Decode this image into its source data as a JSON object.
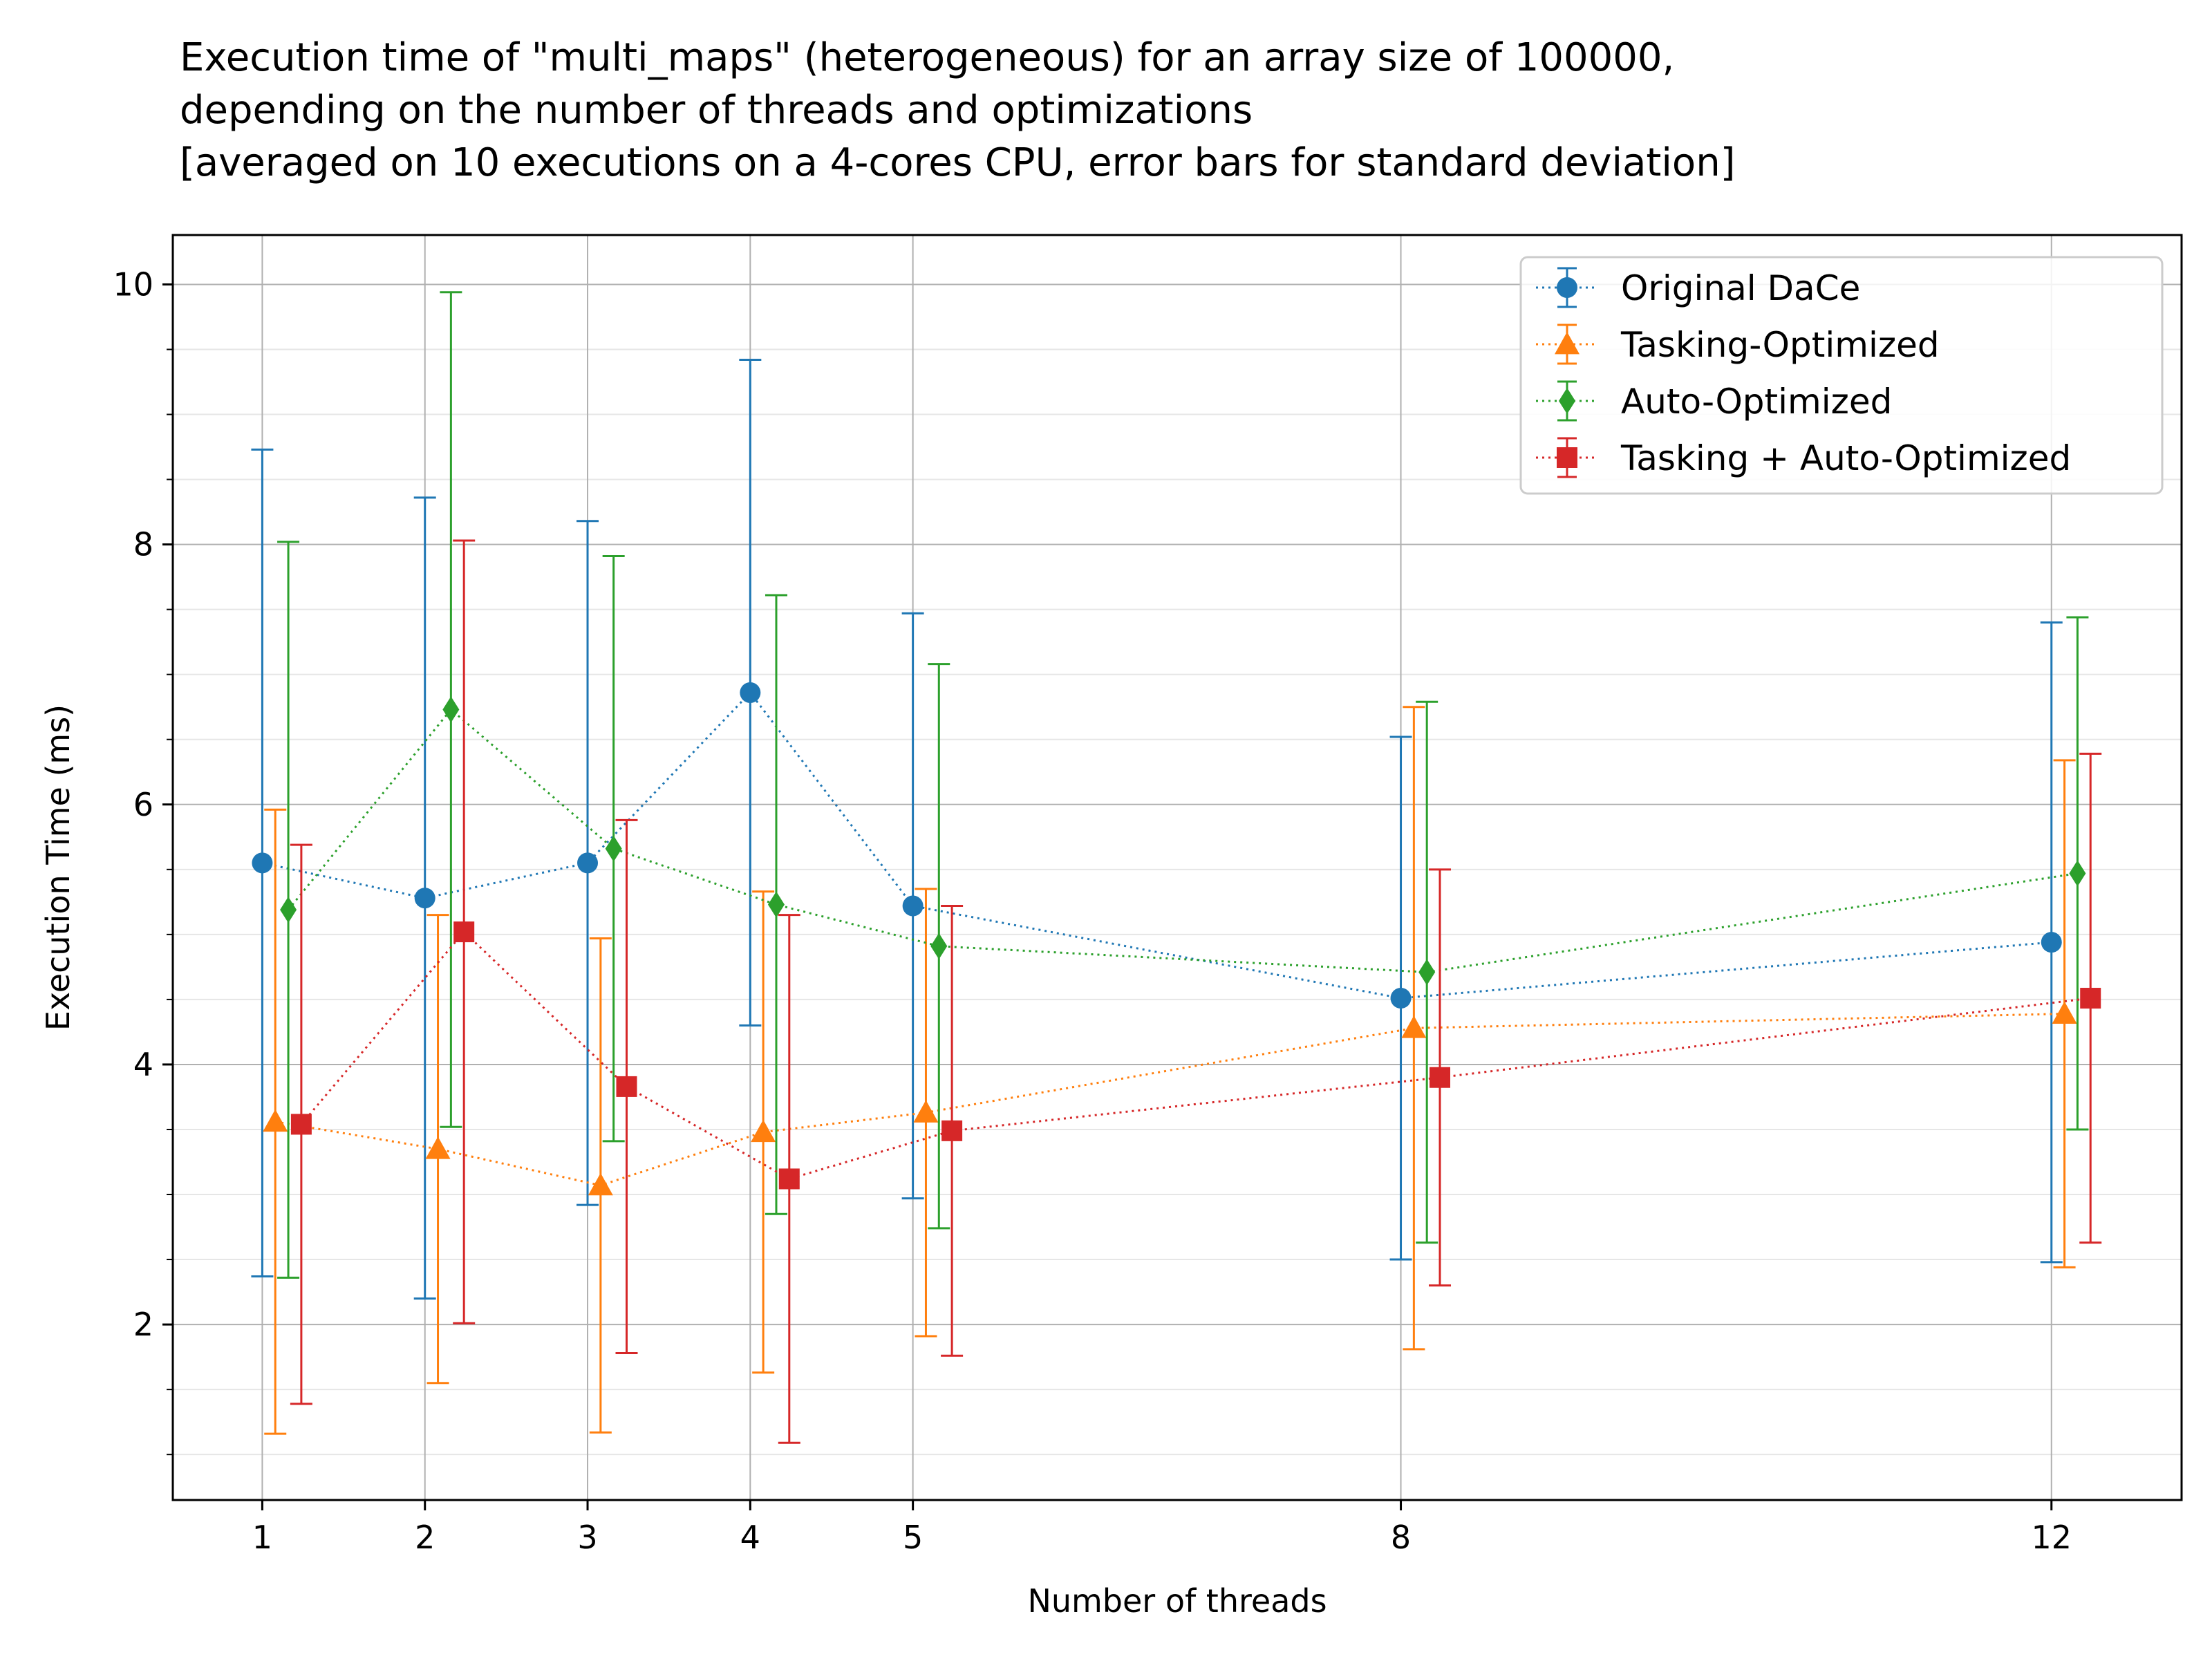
{
  "chart_data": {
    "type": "line",
    "title_lines": [
      "Execution time of \"multi_maps\" (heterogeneous) for an array size of 100000,",
      "depending on the number of threads and optimizations",
      "[averaged on 10 executions on a 4-cores CPU, error bars for standard deviation]"
    ],
    "xlabel": "Number of threads",
    "ylabel": "Execution Time (ms)",
    "x": [
      1,
      2,
      3,
      4,
      5,
      8,
      12
    ],
    "xticks": [
      "1",
      "2",
      "3",
      "4",
      "5",
      "8",
      "12"
    ],
    "yticks": [
      "2",
      "4",
      "6",
      "8",
      "10"
    ],
    "xlim": [
      0.45,
      12.8
    ],
    "ylim": [
      0.65,
      10.38
    ],
    "grid": true,
    "legend_position": "top-right",
    "series": [
      {
        "name": "Original DaCe",
        "color": "#1f77b4",
        "marker": "circle",
        "x_offset": 0.0,
        "values": [
          5.55,
          5.28,
          5.55,
          6.86,
          5.22,
          4.51,
          4.94
        ],
        "std": [
          3.18,
          3.08,
          2.63,
          2.56,
          2.25,
          2.01,
          2.46
        ]
      },
      {
        "name": "Tasking-Optimized",
        "color": "#ff7f0e",
        "marker": "triangle",
        "x_offset": 0.08,
        "values": [
          3.56,
          3.35,
          3.07,
          3.48,
          3.63,
          4.28,
          4.39
        ],
        "std": [
          2.4,
          1.8,
          1.9,
          1.85,
          1.72,
          2.47,
          1.95
        ]
      },
      {
        "name": "Auto-Optimized",
        "color": "#2ca02c",
        "marker": "diamond",
        "x_offset": 0.16,
        "values": [
          5.19,
          6.73,
          5.66,
          5.23,
          4.91,
          4.71,
          5.47
        ],
        "std": [
          2.83,
          3.21,
          2.25,
          2.38,
          2.17,
          2.08,
          1.97
        ]
      },
      {
        "name": "Tasking + Auto-Optimized",
        "color": "#d62728",
        "marker": "square",
        "x_offset": 0.24,
        "values": [
          3.54,
          5.02,
          3.83,
          3.12,
          3.49,
          3.9,
          4.51
        ],
        "std": [
          2.15,
          3.01,
          2.05,
          2.03,
          1.73,
          1.6,
          1.88
        ]
      }
    ]
  }
}
